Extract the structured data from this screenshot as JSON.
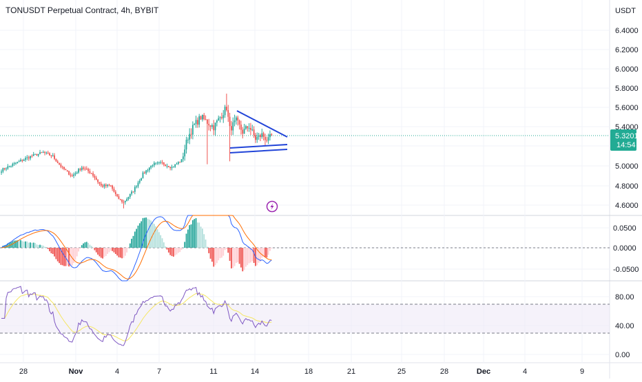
{
  "header": {
    "symbol_title": "TONUSDT Perpetual Contract, 4h, BYBIT"
  },
  "price_axis": {
    "unit": "USDT",
    "ticks": [
      "6.4000",
      "6.2000",
      "6.0000",
      "5.8000",
      "5.6000",
      "5.4000",
      "5.2000",
      "5.0000",
      "4.8000",
      "4.6000"
    ],
    "current_price": "5.3201",
    "countdown": "14:54"
  },
  "macd_axis": {
    "ticks": [
      "0.0500",
      "0.0000",
      "-0.0500"
    ]
  },
  "rsi_axis": {
    "ticks": [
      "80.00",
      "40.00",
      "0.00"
    ]
  },
  "time_axis": {
    "labels": [
      "28",
      "Nov",
      "4",
      "7",
      "11",
      "14",
      "18",
      "21",
      "25",
      "28",
      "Dec",
      "4",
      "9"
    ]
  },
  "colors": {
    "up": "#26a69a",
    "down": "#ef5350",
    "macd": "#2962ff",
    "signal": "#ff6d00",
    "rsi": "#7e57c2",
    "rsi_ma": "#f5e663",
    "drawing": "#2144d8",
    "badge": "#22ab94",
    "alert": "#9c27b0"
  },
  "icons": {
    "alert": "lightning-alert-icon"
  },
  "chart_data": {
    "type": "candlestick",
    "title": "TONUSDT Perpetual Contract, 4h, BYBIT",
    "last_price": 5.3201,
    "price_ylim": [
      4.5,
      6.6
    ],
    "close_anchors": [
      [
        0,
        4.96
      ],
      [
        10,
        5.04
      ],
      [
        18,
        5.1
      ],
      [
        26,
        5.14
      ],
      [
        32,
        5.1
      ],
      [
        38,
        4.98
      ],
      [
        44,
        4.9
      ],
      [
        50,
        4.99
      ],
      [
        56,
        4.93
      ],
      [
        62,
        4.8
      ],
      [
        68,
        4.8
      ],
      [
        72,
        4.68
      ],
      [
        76,
        4.63
      ],
      [
        82,
        4.75
      ],
      [
        88,
        4.92
      ],
      [
        94,
        5.02
      ],
      [
        100,
        5.03
      ],
      [
        106,
        4.99
      ],
      [
        112,
        5.06
      ],
      [
        116,
        5.3
      ],
      [
        120,
        5.42
      ],
      [
        124,
        5.5
      ],
      [
        128,
        5.45
      ],
      [
        132,
        5.4
      ],
      [
        136,
        5.5
      ],
      [
        140,
        5.6
      ],
      [
        142,
        5.38
      ],
      [
        146,
        5.46
      ],
      [
        150,
        5.35
      ],
      [
        154,
        5.41
      ],
      [
        158,
        5.28
      ],
      [
        162,
        5.32
      ],
      [
        166,
        5.26
      ],
      [
        168,
        5.32
      ]
    ],
    "triangle_pattern": {
      "upper_line": {
        "from": [
          5.58,
          "Nov 12"
        ],
        "to": [
          5.29,
          "Nov 16"
        ]
      },
      "support_line_1": {
        "from": [
          5.2,
          "Nov 12"
        ],
        "to": [
          5.22,
          "Nov 16"
        ]
      },
      "support_line_2": {
        "from": [
          5.15,
          "Nov 12"
        ],
        "to": [
          5.17,
          "Nov 16"
        ]
      }
    },
    "macd": {
      "ylim": [
        -0.09,
        0.09
      ],
      "levels": [
        0.05,
        0.0,
        -0.05
      ]
    },
    "rsi": {
      "ylim": [
        0,
        100
      ],
      "upper_band": 70,
      "lower_band": 30,
      "ticks": [
        80,
        40,
        0
      ]
    }
  }
}
